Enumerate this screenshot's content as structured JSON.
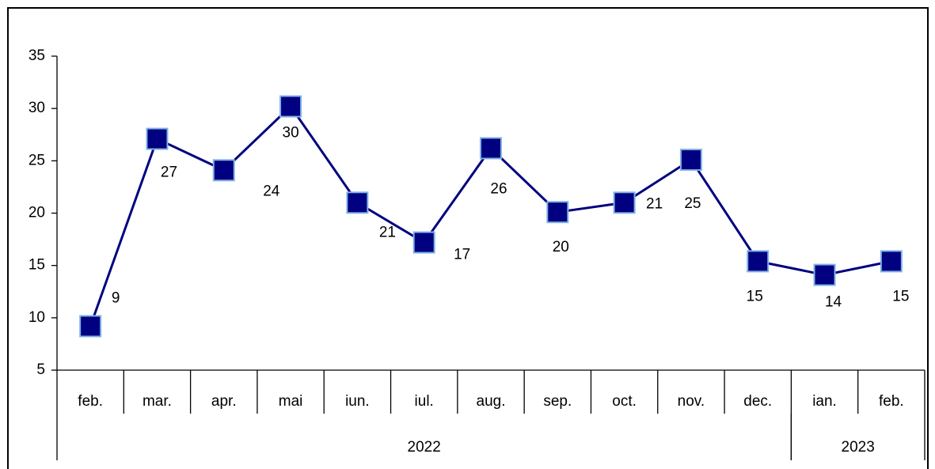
{
  "chart_data": {
    "type": "line",
    "categories": [
      "feb.",
      "mar.",
      "apr.",
      "mai",
      "iun.",
      "iul.",
      "aug.",
      "sep.",
      "oct.",
      "nov.",
      "dec.",
      "ian.",
      "feb."
    ],
    "year_groups": [
      {
        "label": "2022",
        "count": 11
      },
      {
        "label": "2023",
        "count": 2
      }
    ],
    "series": [
      {
        "color": "#000080",
        "values": [
          9.2,
          27.1,
          24.1,
          30.2,
          21.0,
          17.2,
          26.2,
          20.1,
          21.0,
          25.1,
          15.4,
          14.1,
          15.4
        ],
        "value_labels": [
          "9",
          "27",
          "24",
          "30",
          "21",
          "17",
          "26",
          "20",
          "21",
          "25",
          "15",
          "14",
          "15"
        ]
      }
    ],
    "ylim": [
      5,
      35
    ],
    "yticks": [
      5,
      10,
      15,
      20,
      25,
      30,
      35
    ],
    "grid": false
  }
}
